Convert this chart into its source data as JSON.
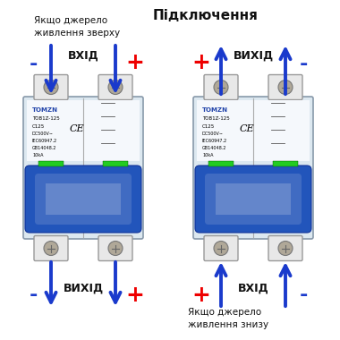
{
  "title": "Підключення",
  "bg_color": "#ffffff",
  "blue_color": "#1a3acc",
  "red_color": "#ee0000",
  "black_color": "#111111",
  "text_top_left": "Якщо джерело\nживлення зверху",
  "text_bottom_right": "Якщо джерело\nживлення знизу",
  "label_vkhid": "ВХІД",
  "label_vykhid": "ВИХІД",
  "breaker_body": "#dce8f0",
  "breaker_border": "#8899aa",
  "terminal_color": "#e8e8e8",
  "screw_color": "#b0a898",
  "handle_blue": "#2255bb",
  "handle_light": "#6688cc",
  "green_ind": "#22cc22",
  "label_schematic": "#555555"
}
